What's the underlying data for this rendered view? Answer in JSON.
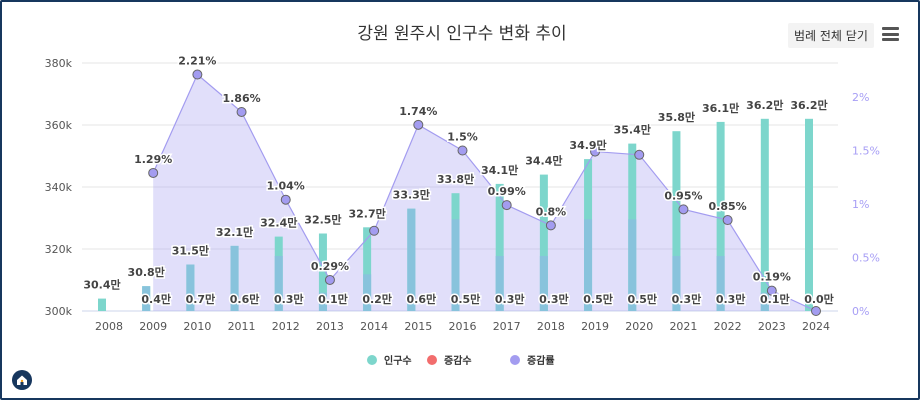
{
  "header": {
    "title": "강원 원주시 인구수 변화 추이",
    "legend_toggle": "범례 전체 닫기"
  },
  "icons": {
    "menu": "hamburger-menu-icon",
    "home": "home-icon"
  },
  "chart_data": {
    "type": "bar+line",
    "title": "강원 원주시 인구수 변화 추이",
    "categories": [
      "2008",
      "2009",
      "2010",
      "2011",
      "2012",
      "2013",
      "2014",
      "2015",
      "2016",
      "2017",
      "2018",
      "2019",
      "2020",
      "2021",
      "2022",
      "2023",
      "2024"
    ],
    "left_axis": {
      "ticks": [
        "300k",
        "320k",
        "340k",
        "360k",
        "380k"
      ],
      "tick_values": [
        300000,
        320000,
        340000,
        360000,
        380000
      ],
      "ylim": [
        300000,
        380000
      ]
    },
    "right_axis": {
      "ticks": [
        "0%",
        "0.5%",
        "1%",
        "1.5%",
        "2%"
      ],
      "tick_values": [
        0,
        0.5,
        1,
        1.5,
        2
      ],
      "ylim": [
        0,
        2
      ]
    },
    "grid": true,
    "legend_position": "bottom",
    "series": [
      {
        "name": "인구수",
        "type": "bar",
        "color": "#7dd6cc",
        "values": [
          304000,
          308000,
          315000,
          321000,
          324000,
          325000,
          327000,
          333000,
          338000,
          341000,
          344000,
          349000,
          354000,
          358000,
          361000,
          362000,
          362000
        ],
        "labels": [
          "30.4만",
          "30.8만",
          "31.5만",
          "32.1만",
          "32.4만",
          "32.5만",
          "32.7만",
          "33.3만",
          "33.8만",
          "34.1만",
          "34.4만",
          "34.9만",
          "35.4만",
          "35.8만",
          "36.1만",
          "36.2만",
          "36.2만"
        ]
      },
      {
        "name": "증감수",
        "type": "bar",
        "color": "#88c3dc",
        "legend_color": "#f26d6d",
        "values": [
          null,
          4000,
          7000,
          6000,
          3000,
          1000,
          2000,
          6000,
          5000,
          3000,
          3000,
          5000,
          5000,
          3000,
          3000,
          1000,
          0
        ],
        "labels": [
          "",
          "0.4만",
          "0.7만",
          "0.6만",
          "0.3만",
          "0.1만",
          "0.2만",
          "0.6만",
          "0.5만",
          "0.3만",
          "0.3만",
          "0.5만",
          "0.5만",
          "0.3만",
          "0.3만",
          "0.1만",
          "0.0만"
        ]
      },
      {
        "name": "증감률",
        "type": "area-line",
        "color": "#a39cf0",
        "values": [
          null,
          1.29,
          2.21,
          1.86,
          1.04,
          0.29,
          0.75,
          1.74,
          1.5,
          0.99,
          0.8,
          1.49,
          1.46,
          0.95,
          0.85,
          0.19,
          0.0
        ],
        "labels": [
          "",
          "1.29%",
          "2.21%",
          "1.86%",
          "1.04%",
          "0.29%",
          "",
          "1.74%",
          "1.5%",
          "0.99%",
          "0.8%",
          "",
          "",
          "0.95%",
          "0.85%",
          "0.19%",
          ""
        ]
      }
    ]
  }
}
